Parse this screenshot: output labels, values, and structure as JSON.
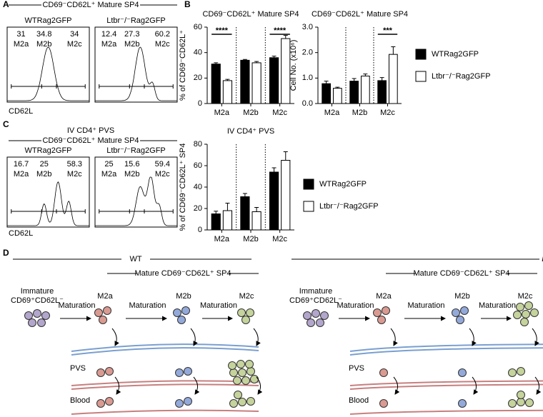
{
  "panel_letters": [
    "A",
    "B",
    "C",
    "D"
  ],
  "gates": [
    "M2a",
    "M2b",
    "M2c"
  ],
  "gate_colors": [
    "#d42a2a",
    "#2a3fd0",
    "#3b9a3b"
  ],
  "panel_a": {
    "title": "CD69⁻CD62L⁺ Mature SP4",
    "x_label": "CD62L",
    "plots": [
      {
        "label": "WTRag2GFP",
        "values": [
          31,
          34.8,
          34
        ]
      },
      {
        "label": "Ltbr⁻/⁻Rag2GFP",
        "values": [
          12.4,
          27.3,
          60.2
        ]
      }
    ]
  },
  "panel_c": {
    "title": "IV CD4⁺ PVS",
    "subtitle": "CD69⁻CD62L⁺ Mature SP4",
    "x_label": "CD62L",
    "plots": [
      {
        "label": "WTRag2GFP",
        "values": [
          16.7,
          25,
          58.3
        ]
      },
      {
        "label": "Ltbr⁻/⁻Rag2GFP",
        "values": [
          25,
          15.6,
          59.4
        ]
      }
    ]
  },
  "chart_data": [
    {
      "type": "bar",
      "title": "CD69⁻CD62L⁺ Mature SP4",
      "y_label": "% of CD69⁻CD62L⁺",
      "categories": [
        "M2a",
        "M2b",
        "M2c"
      ],
      "series": [
        {
          "color": "#000000",
          "values": [
            31,
            34,
            36
          ],
          "errors": [
            1,
            0.6,
            1.2
          ]
        },
        {
          "color": "#ffffff",
          "values": [
            18,
            32,
            51
          ],
          "errors": [
            1,
            1,
            2.5
          ]
        }
      ],
      "ylim": [
        0,
        60
      ],
      "yticks": [
        0,
        20,
        40,
        60
      ],
      "annotations": [
        {
          "category": 0,
          "text": "****"
        },
        {
          "category": 2,
          "text": "****"
        }
      ]
    },
    {
      "type": "bar",
      "title": "CD69⁻CD62L⁺ Mature SP4",
      "y_label": "Cell No. (x10⁶)",
      "categories": [
        "M2a",
        "M2b",
        "M2c"
      ],
      "series": [
        {
          "name": "WTRag2GFP",
          "color": "#000000",
          "values": [
            0.78,
            0.88,
            0.9
          ],
          "errors": [
            0.1,
            0.1,
            0.12
          ]
        },
        {
          "name": "Ltbr⁻/⁻Rag2GFP",
          "color": "#ffffff",
          "values": [
            0.6,
            1.08,
            1.93
          ],
          "errors": [
            0.04,
            0.08,
            0.3
          ]
        }
      ],
      "ylim": [
        0,
        3
      ],
      "yticks": [
        {
          "value": 0,
          "label": "0.0"
        },
        {
          "value": 1,
          "label": "1.0"
        },
        {
          "value": 2,
          "label": "2.0"
        },
        {
          "value": 3,
          "label": "3.0"
        }
      ],
      "annotations": [
        {
          "category": 2,
          "text": "***"
        }
      ],
      "legend": "right"
    },
    {
      "type": "bar",
      "title": "IV CD4⁺ PVS",
      "y_label": "% of CD69⁻CD62L⁺ SP4",
      "categories": [
        "M2a",
        "M2b",
        "M2c"
      ],
      "series": [
        {
          "name": "WTRag2GFP",
          "color": "#000000",
          "values": [
            15,
            31,
            54
          ],
          "errors": [
            2.5,
            3,
            4
          ]
        },
        {
          "name": "Ltbr⁻/⁻Rag2GFP",
          "color": "#ffffff",
          "values": [
            18,
            17,
            65
          ],
          "errors": [
            7,
            4,
            8
          ]
        }
      ],
      "ylim": [
        0,
        80
      ],
      "yticks": [
        0,
        20,
        40,
        60,
        80
      ],
      "legend": "right"
    }
  ],
  "diagram": [
    {
      "header": "WT",
      "subheader": "Mature CD69⁻CD62L⁺ SP4",
      "immature": [
        "Immature",
        "CD69⁺CD62L⁻"
      ],
      "stages": [
        "M2a",
        "M2b",
        "M2c"
      ],
      "arrows": [
        "Maturation",
        "Maturation",
        "Maturation"
      ],
      "vessels": [
        "PVS",
        "Blood"
      ]
    },
    {
      "header": "Ltbr⁻/⁻",
      "subheader": "Mature CD69⁻CD62L⁺ SP4",
      "immature": [
        "Immature",
        "CD69⁺CD62L⁻"
      ],
      "stages": [
        "M2a",
        "M2b",
        "M2c"
      ],
      "arrows": [
        "Maturation",
        "Maturation",
        "Maturation"
      ],
      "vessels": [
        "PVS",
        "Blood"
      ]
    }
  ]
}
